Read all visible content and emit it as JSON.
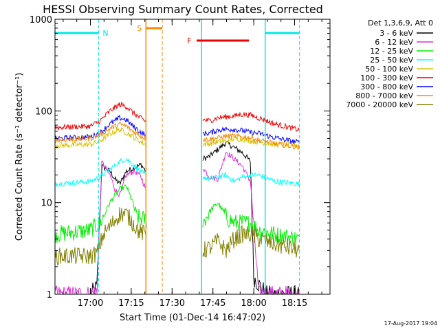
{
  "colors": {
    "black": "#000000",
    "magenta": "#e030e0",
    "green": "#00ee00",
    "cyan": "#00ffff",
    "gold": "#d8c000",
    "red": "#ee0000",
    "blue": "#0000ff",
    "orange": "#ff8800",
    "olive": "#808000",
    "night_cyan": "#00e8e8",
    "saa_orange": "#ff8800",
    "flare_red": "#ee0000"
  },
  "chart_data": {
    "type": "line",
    "title": "HESSI Observing Summary Count Rates, Corrected",
    "xlabel": "Start Time (01-Dec-14 16:47:02)",
    "ylabel": "Corrected Count Rate (s⁻¹ detector⁻¹)",
    "ylog": true,
    "ylim": [
      1,
      1000
    ],
    "xlim": [
      "16:47",
      "18:28"
    ],
    "y_ticks": [
      "1",
      "10",
      "100",
      "1000"
    ],
    "x_ticks": [
      "17:00",
      "17:15",
      "17:30",
      "17:45",
      "18:00",
      "18:15"
    ],
    "legend_title": "Det 1,3,6,9, Att 0",
    "legend_position": "right",
    "series": [
      {
        "name": "3 - 6 keV",
        "color": "black",
        "data": [
          [
            17.0,
            1
          ],
          [
            17.04,
            1.2
          ],
          [
            17.07,
            25
          ],
          [
            17.12,
            22
          ],
          [
            17.15,
            18
          ],
          [
            17.18,
            16
          ],
          [
            17.22,
            22
          ],
          [
            17.27,
            24
          ],
          [
            17.31,
            26
          ],
          [
            17.34,
            22
          ],
          [
            17.69,
            30
          ],
          [
            17.73,
            32
          ],
          [
            17.78,
            38
          ],
          [
            17.83,
            45
          ],
          [
            17.88,
            40
          ],
          [
            17.93,
            35
          ],
          [
            17.98,
            28
          ],
          [
            18.0,
            1.5
          ],
          [
            18.08,
            1
          ],
          [
            18.13,
            1
          ],
          [
            18.28,
            1
          ]
        ]
      },
      {
        "name": "6 - 12 keV",
        "color": "magenta",
        "data": [
          [
            16.78,
            1
          ],
          [
            17.0,
            1
          ],
          [
            17.04,
            1.1
          ],
          [
            17.07,
            28
          ],
          [
            17.12,
            20
          ],
          [
            17.15,
            14
          ],
          [
            17.18,
            12
          ],
          [
            17.22,
            20
          ],
          [
            17.27,
            22
          ],
          [
            17.31,
            19
          ],
          [
            17.34,
            14
          ],
          [
            17.69,
            24
          ],
          [
            17.73,
            19
          ],
          [
            17.78,
            18
          ],
          [
            17.83,
            36
          ],
          [
            17.88,
            30
          ],
          [
            17.93,
            25
          ],
          [
            17.98,
            17
          ],
          [
            18.03,
            1
          ],
          [
            18.28,
            1
          ]
        ]
      },
      {
        "name": "12 - 25 keV",
        "color": "green",
        "data": [
          [
            16.78,
            4.5
          ],
          [
            17.0,
            5.0
          ],
          [
            17.06,
            6
          ],
          [
            17.12,
            10
          ],
          [
            17.15,
            12
          ],
          [
            17.18,
            14
          ],
          [
            17.22,
            15
          ],
          [
            17.26,
            10
          ],
          [
            17.28,
            7
          ],
          [
            17.34,
            6.5
          ],
          [
            17.69,
            6
          ],
          [
            17.73,
            8
          ],
          [
            17.78,
            10
          ],
          [
            17.83,
            7
          ],
          [
            17.88,
            6
          ],
          [
            17.93,
            6
          ],
          [
            17.98,
            6
          ],
          [
            18.03,
            5
          ],
          [
            18.13,
            4.5
          ],
          [
            18.28,
            4
          ]
        ]
      },
      {
        "name": "25 - 50 keV",
        "color": "cyan",
        "data": [
          [
            16.78,
            16
          ],
          [
            17.0,
            17
          ],
          [
            17.06,
            19
          ],
          [
            17.12,
            23
          ],
          [
            17.18,
            28
          ],
          [
            17.22,
            30
          ],
          [
            17.26,
            26
          ],
          [
            17.3,
            22
          ],
          [
            17.34,
            20
          ],
          [
            17.69,
            19
          ],
          [
            17.73,
            18
          ],
          [
            17.78,
            19
          ],
          [
            17.83,
            20
          ],
          [
            17.88,
            17
          ],
          [
            17.93,
            19
          ],
          [
            17.98,
            20
          ],
          [
            18.03,
            20
          ],
          [
            18.13,
            17
          ],
          [
            18.28,
            16
          ]
        ]
      },
      {
        "name": "50 - 100 keV",
        "color": "gold",
        "data": [
          [
            16.78,
            42
          ],
          [
            17.0,
            43
          ],
          [
            17.06,
            47
          ],
          [
            17.12,
            56
          ],
          [
            17.18,
            63
          ],
          [
            17.22,
            58
          ],
          [
            17.26,
            52
          ],
          [
            17.3,
            47
          ],
          [
            17.34,
            43
          ],
          [
            17.69,
            43
          ],
          [
            17.73,
            44
          ],
          [
            17.78,
            46
          ],
          [
            17.83,
            47
          ],
          [
            17.88,
            50
          ],
          [
            17.93,
            49
          ],
          [
            17.98,
            47
          ],
          [
            18.03,
            46
          ],
          [
            18.13,
            43
          ],
          [
            18.28,
            42
          ]
        ]
      },
      {
        "name": "100 - 300 keV",
        "color": "red",
        "data": [
          [
            16.78,
            66
          ],
          [
            17.0,
            68
          ],
          [
            17.06,
            78
          ],
          [
            17.12,
            100
          ],
          [
            17.18,
            118
          ],
          [
            17.22,
            112
          ],
          [
            17.26,
            96
          ],
          [
            17.3,
            85
          ],
          [
            17.34,
            76
          ],
          [
            17.69,
            80
          ],
          [
            17.73,
            78
          ],
          [
            17.78,
            84
          ],
          [
            17.83,
            86
          ],
          [
            17.88,
            88
          ],
          [
            17.93,
            92
          ],
          [
            17.98,
            90
          ],
          [
            18.03,
            84
          ],
          [
            18.13,
            72
          ],
          [
            18.28,
            62
          ]
        ]
      },
      {
        "name": "300 - 800 keV",
        "color": "blue",
        "data": [
          [
            16.78,
            50
          ],
          [
            17.0,
            52
          ],
          [
            17.06,
            58
          ],
          [
            17.12,
            72
          ],
          [
            17.18,
            84
          ],
          [
            17.22,
            80
          ],
          [
            17.26,
            68
          ],
          [
            17.3,
            60
          ],
          [
            17.34,
            54
          ],
          [
            17.69,
            57
          ],
          [
            17.73,
            57
          ],
          [
            17.78,
            62
          ],
          [
            17.83,
            63
          ],
          [
            17.88,
            63
          ],
          [
            17.93,
            61
          ],
          [
            17.98,
            58
          ],
          [
            18.03,
            57
          ],
          [
            18.13,
            51
          ],
          [
            18.28,
            45
          ]
        ]
      },
      {
        "name": "800 - 7000 keV",
        "color": "orange",
        "data": [
          [
            16.78,
            48
          ],
          [
            17.0,
            50
          ],
          [
            17.06,
            55
          ],
          [
            17.12,
            64
          ],
          [
            17.18,
            72
          ],
          [
            17.22,
            68
          ],
          [
            17.26,
            60
          ],
          [
            17.3,
            54
          ],
          [
            17.34,
            50
          ],
          [
            17.69,
            49
          ],
          [
            17.73,
            49
          ],
          [
            17.78,
            51
          ],
          [
            17.83,
            53
          ],
          [
            17.88,
            53
          ],
          [
            17.93,
            52
          ],
          [
            17.98,
            51
          ],
          [
            18.03,
            48
          ],
          [
            18.13,
            44
          ],
          [
            18.28,
            40
          ]
        ]
      },
      {
        "name": "7000 - 20000 keV",
        "color": "olive",
        "data": [
          [
            16.78,
            2.6
          ],
          [
            17.0,
            2.6
          ],
          [
            17.04,
            2.8
          ],
          [
            17.08,
            4.5
          ],
          [
            17.12,
            5.5
          ],
          [
            17.18,
            7.5
          ],
          [
            17.22,
            7.5
          ],
          [
            17.26,
            6
          ],
          [
            17.3,
            4.8
          ],
          [
            17.34,
            4.5
          ],
          [
            17.69,
            3
          ],
          [
            17.73,
            3.2
          ],
          [
            17.78,
            3.8
          ],
          [
            17.83,
            3
          ],
          [
            17.88,
            4
          ],
          [
            17.93,
            4.5
          ],
          [
            17.98,
            4.5
          ],
          [
            18.03,
            4
          ],
          [
            18.13,
            3.5
          ],
          [
            18.28,
            3
          ]
        ]
      }
    ],
    "annotations": {
      "night": [
        {
          "label": "N",
          "x_start": 16.78,
          "x_end": 17.05
        },
        {
          "label": "",
          "x_start": 18.07,
          "x_end": 18.28
        }
      ],
      "saa": {
        "label": "S",
        "x_start": 17.34,
        "x_end": 17.44
      },
      "flare": {
        "label": "F",
        "x_start": 17.65,
        "x_end": 17.97
      },
      "dashed_lines": [
        {
          "x": 17.05,
          "color": "night_cyan"
        },
        {
          "x": 17.44,
          "color": "saa_orange"
        },
        {
          "x": 18.28,
          "color": "night_cyan"
        }
      ],
      "solid_lines": [
        {
          "x": 17.34,
          "color": "saa_orange"
        },
        {
          "x": 17.68,
          "color": "night_cyan"
        },
        {
          "x": 18.07,
          "color": "night_cyan"
        }
      ]
    }
  },
  "timestamp": "17-Aug-2017 19:04"
}
